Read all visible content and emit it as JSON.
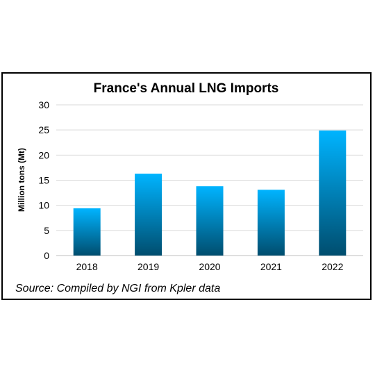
{
  "chart_data": {
    "type": "bar",
    "title": "France's Annual LNG Imports",
    "ylabel": "Million tons (Mt)",
    "xlabel": "",
    "categories": [
      "2018",
      "2019",
      "2020",
      "2021",
      "2022"
    ],
    "values": [
      9.4,
      16.3,
      13.8,
      13.1,
      24.9
    ],
    "ylim": [
      0,
      30
    ],
    "yticks": [
      0,
      5,
      10,
      15,
      20,
      25,
      30
    ],
    "grid": true,
    "bar_color_top": "#00b4ff",
    "bar_color_bottom": "#004d6e",
    "source": "Source: Compiled by NGI from Kpler data"
  }
}
